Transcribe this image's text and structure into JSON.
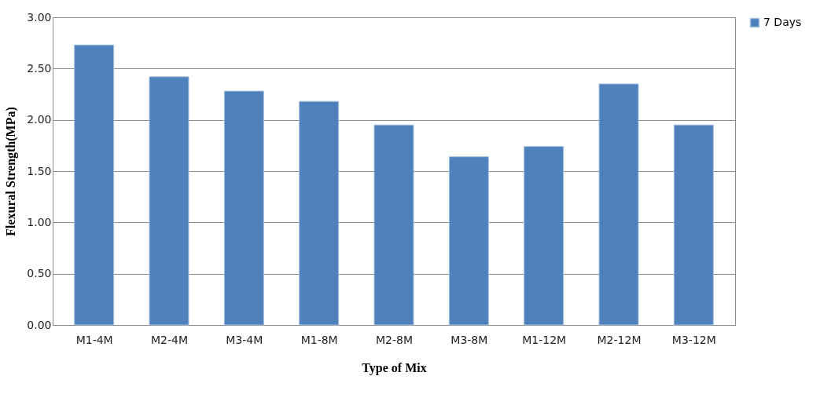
{
  "chart_data": {
    "type": "bar",
    "xlabel": "Type  of Mix",
    "ylabel": "Flexural Strength(MPa)",
    "categories": [
      "M1-4M",
      "M2-4M",
      "M3-4M",
      "M1-8M",
      "M2-8M",
      "M3-8M",
      "M1-12M",
      "M2-12M",
      "M3-12M"
    ],
    "series": [
      {
        "name": "7 Days",
        "color": "#4f81bd",
        "values": [
          2.73,
          2.42,
          2.28,
          2.18,
          1.95,
          1.64,
          1.74,
          2.35,
          1.95
        ]
      }
    ],
    "ylim": [
      0,
      3
    ],
    "yticks": [
      {
        "value": 0,
        "label": "0.00"
      },
      {
        "value": 0.5,
        "label": "0.50"
      },
      {
        "value": 1,
        "label": "1.00"
      },
      {
        "value": 1.5,
        "label": "1.50"
      },
      {
        "value": 2,
        "label": "2.00"
      },
      {
        "value": 2.5,
        "label": "2.50"
      },
      {
        "value": 3,
        "label": "3.00"
      }
    ],
    "grid": "y",
    "legend": "right"
  }
}
